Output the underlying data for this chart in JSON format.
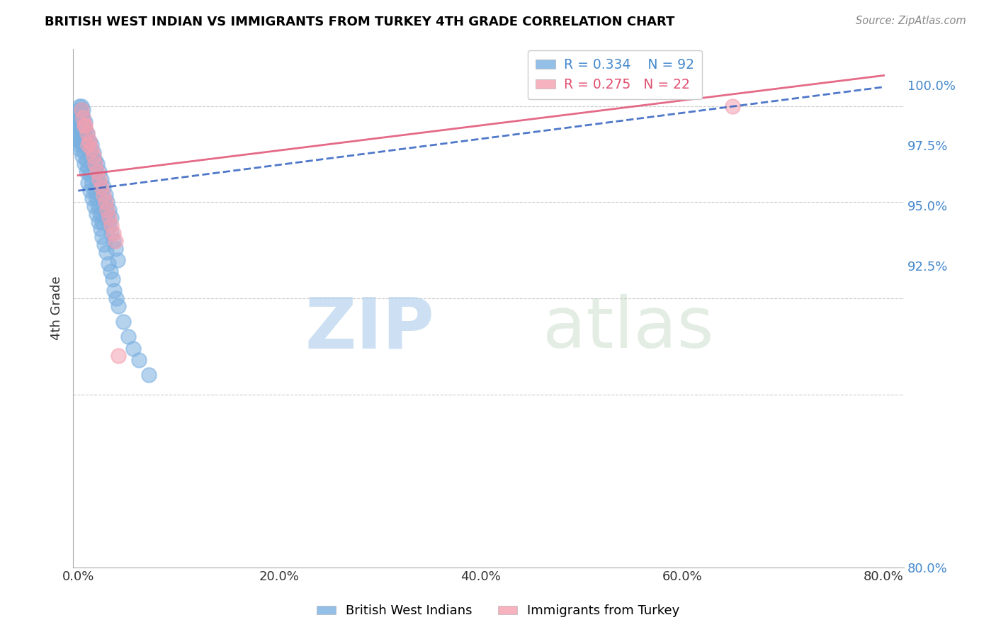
{
  "title": "BRITISH WEST INDIAN VS IMMIGRANTS FROM TURKEY 4TH GRADE CORRELATION CHART",
  "source": "Source: ZipAtlas.com",
  "xlabel_ticks": [
    "0.0%",
    "20.0%",
    "40.0%",
    "60.0%",
    "80.0%"
  ],
  "xlabel_vals": [
    0.0,
    20.0,
    40.0,
    60.0,
    80.0
  ],
  "ylabel": "4th Grade",
  "ylabel_ticks_right": [
    "100.0%",
    "97.5%",
    "95.0%",
    "92.5%",
    "80.0%"
  ],
  "ylabel_vals": [
    100.0,
    97.5,
    95.0,
    92.5,
    80.0
  ],
  "ylim": [
    88.0,
    101.5
  ],
  "xlim": [
    -0.5,
    82.0
  ],
  "blue_R": 0.334,
  "blue_N": 92,
  "pink_R": 0.275,
  "pink_N": 22,
  "blue_color": "#7ab0e0",
  "pink_color": "#f4a0b0",
  "blue_line_color": "#3060c0",
  "pink_line_color": "#e05070",
  "watermark_zip": "ZIP",
  "watermark_atlas": "atlas",
  "legend_label1": "British West Indians",
  "legend_label2": "Immigrants from Turkey",
  "blue_scatter_x": [
    0.15,
    0.15,
    0.15,
    0.3,
    0.3,
    0.5,
    0.5,
    0.5,
    0.7,
    0.7,
    0.7,
    0.9,
    0.9,
    1.1,
    1.1,
    1.3,
    1.3,
    1.5,
    1.5,
    1.7,
    1.7,
    1.9,
    1.9,
    2.1,
    2.1,
    2.3,
    2.3,
    2.5,
    2.5,
    2.7,
    2.7,
    2.9,
    2.9,
    3.1,
    3.1,
    3.3,
    3.3,
    3.5,
    3.7,
    3.9,
    0.1,
    0.1,
    0.2,
    0.2,
    0.3,
    0.4,
    0.4,
    0.6,
    0.6,
    0.8,
    0.8,
    1.0,
    1.0,
    1.2,
    1.2,
    1.4,
    1.4,
    1.6,
    1.6,
    1.8,
    1.8,
    2.0,
    2.0,
    2.2,
    2.2,
    2.4,
    2.4,
    2.6,
    2.8,
    3.0,
    3.2,
    3.4,
    3.6,
    3.8,
    4.0,
    4.5,
    5.0,
    5.5,
    6.0,
    7.0,
    0.05,
    0.05,
    0.05,
    0.05,
    0.05,
    0.1,
    0.1,
    0.1,
    0.1,
    0.1,
    0.2,
    0.2
  ],
  "blue_scatter_y": [
    100.0,
    99.9,
    99.8,
    100.0,
    99.8,
    99.9,
    99.7,
    99.5,
    99.6,
    99.4,
    99.2,
    99.3,
    99.0,
    99.1,
    98.8,
    99.0,
    98.7,
    98.8,
    98.5,
    98.6,
    98.3,
    98.5,
    98.1,
    98.3,
    97.9,
    98.1,
    97.7,
    97.9,
    97.5,
    97.7,
    97.3,
    97.5,
    97.1,
    97.3,
    96.9,
    97.1,
    96.7,
    96.5,
    96.3,
    96.0,
    99.5,
    99.3,
    99.4,
    99.1,
    99.2,
    99.0,
    98.7,
    98.8,
    98.5,
    98.6,
    98.3,
    98.4,
    98.0,
    98.2,
    97.8,
    98.0,
    97.6,
    97.8,
    97.4,
    97.6,
    97.2,
    97.4,
    97.0,
    97.2,
    96.8,
    97.0,
    96.6,
    96.4,
    96.2,
    95.9,
    95.7,
    95.5,
    95.2,
    95.0,
    94.8,
    94.4,
    94.0,
    93.7,
    93.4,
    93.0,
    99.8,
    99.6,
    99.4,
    99.2,
    99.0,
    99.7,
    99.5,
    99.3,
    99.1,
    98.9,
    99.5,
    99.3
  ],
  "pink_scatter_x": [
    0.3,
    0.5,
    0.7,
    0.9,
    1.1,
    1.3,
    1.5,
    1.7,
    1.9,
    2.1,
    2.3,
    2.5,
    2.7,
    2.9,
    3.1,
    3.3,
    3.5,
    3.7,
    0.6,
    1.0,
    4.0,
    65.0
  ],
  "pink_scatter_y": [
    99.9,
    99.7,
    99.5,
    99.3,
    99.1,
    98.9,
    98.7,
    98.5,
    98.3,
    98.1,
    97.9,
    97.7,
    97.5,
    97.3,
    97.1,
    96.9,
    96.7,
    96.5,
    99.5,
    99.0,
    93.5,
    100.0
  ],
  "blue_trend_x": [
    0.0,
    80.0
  ],
  "blue_trend_y": [
    97.8,
    100.5
  ],
  "pink_trend_x": [
    0.0,
    80.0
  ],
  "pink_trend_y": [
    98.2,
    100.8
  ],
  "hgrid_vals": [
    100.0,
    97.5,
    95.0,
    92.5
  ]
}
